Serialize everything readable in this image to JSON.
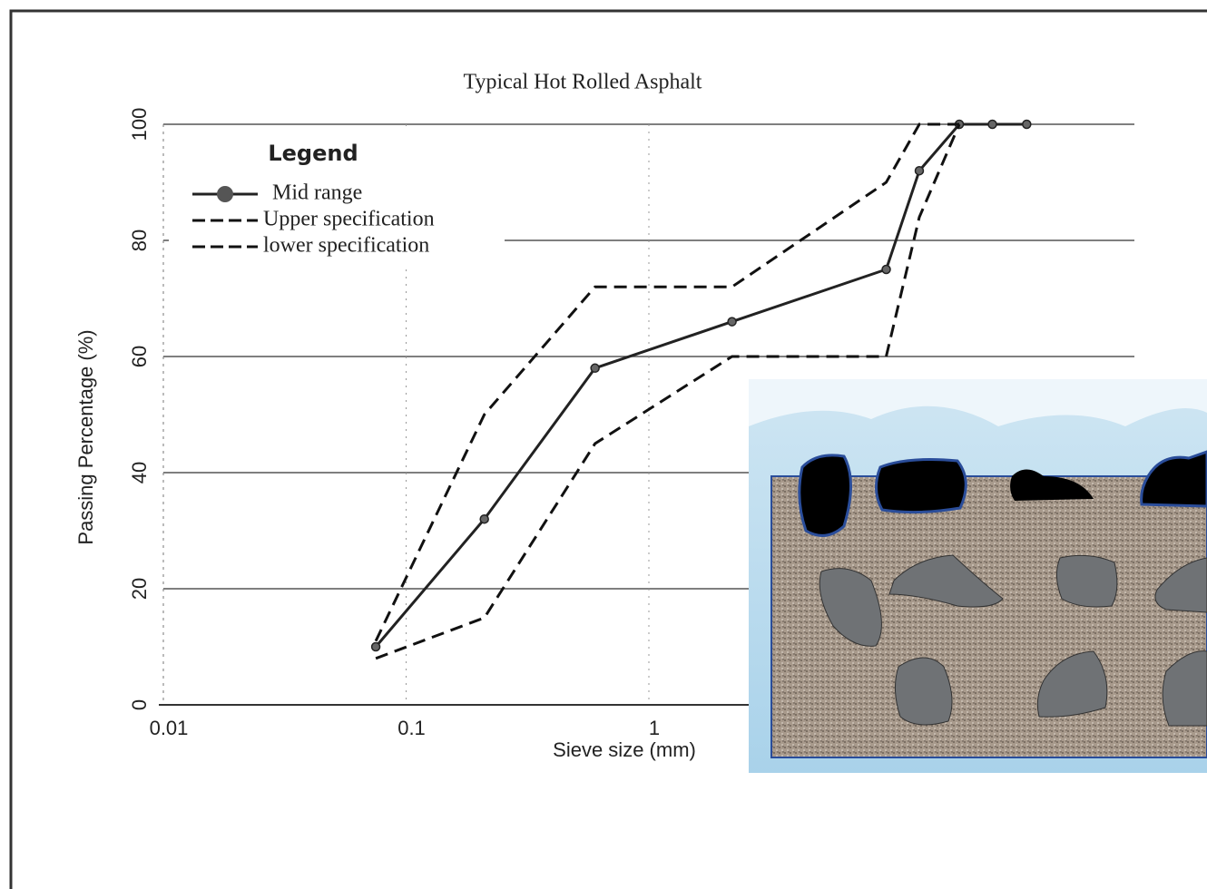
{
  "chart_data": {
    "type": "line",
    "title": "Typical Hot Rolled Asphalt",
    "x_label": "Sieve size (mm)",
    "y_label": "Passing Percentage (%)",
    "legend_title": "Legend",
    "legend_position": "upper left",
    "xscale": "log",
    "xlim": [
      0.01,
      100
    ],
    "xticks": [
      0.01,
      0.1,
      1
    ],
    "ylim": [
      0,
      100
    ],
    "yticks": [
      0,
      20,
      40,
      60,
      80,
      100
    ],
    "grid": true,
    "series": [
      {
        "name": "Mid range",
        "color": "#222222",
        "style": "solid",
        "markers": true,
        "x": [
          0.075,
          0.21,
          0.6,
          2.2,
          9.5,
          13,
          19,
          26,
          36
        ],
        "values": [
          10,
          32,
          58,
          66,
          75,
          92,
          100,
          100,
          100
        ]
      },
      {
        "name": "Upper specification",
        "color": "#111111",
        "style": "dashed",
        "markers": false,
        "x": [
          0.075,
          0.21,
          0.6,
          2.2,
          9.5,
          13,
          19
        ],
        "values": [
          11,
          50,
          72,
          72,
          90,
          100,
          100
        ]
      },
      {
        "name": "lower specification",
        "color": "#111111",
        "style": "dashed",
        "markers": false,
        "x": [
          0.075,
          0.21,
          0.6,
          2.2,
          9.5,
          13,
          19
        ],
        "values": [
          8,
          15,
          45,
          60,
          60,
          84,
          100
        ]
      }
    ]
  }
}
